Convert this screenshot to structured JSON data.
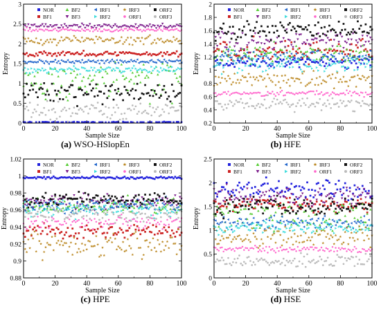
{
  "legend_entries": [
    {
      "name": "NOR",
      "color": "#2222dd",
      "shape": "square"
    },
    {
      "name": "BF1",
      "color": "#cc2222",
      "shape": "square"
    },
    {
      "name": "BF2",
      "color": "#55cc33",
      "shape": "triangle-up"
    },
    {
      "name": "BF3",
      "color": "#7a1a8a",
      "shape": "triangle-down"
    },
    {
      "name": "IRF1",
      "color": "#2266cc",
      "shape": "triangle-left"
    },
    {
      "name": "IRF2",
      "color": "#44dddd",
      "shape": "triangle-right"
    },
    {
      "name": "IRF3",
      "color": "#bb8822",
      "shape": "star"
    },
    {
      "name": "ORF1",
      "color": "#ff66cc",
      "shape": "hexagon"
    },
    {
      "name": "ORF2",
      "color": "#111111",
      "shape": "square"
    },
    {
      "name": "ORF3",
      "color": "#bbbbbb",
      "shape": "circle"
    }
  ],
  "chart_data": [
    {
      "type": "scatter",
      "caption_letter": "(a)",
      "caption_text": "WSO-HSlopEn",
      "xlabel": "Sample Size",
      "ylabel": "Entropy",
      "xlim": [
        0,
        100
      ],
      "ylim": [
        0,
        3
      ],
      "xticks": [
        "0",
        "20",
        "40",
        "60",
        "80",
        "100"
      ],
      "yticks": [
        "0",
        "0.5",
        "1",
        "1.5",
        "2",
        "2.5",
        "3"
      ],
      "ytick_values": [
        0,
        0.5,
        1,
        1.5,
        2,
        2.5,
        3
      ],
      "series": [
        {
          "name": "NOR",
          "mean": 0.02,
          "spread": 0.01
        },
        {
          "name": "BF1",
          "mean": 1.75,
          "spread": 0.05
        },
        {
          "name": "BF2",
          "mean": 1.05,
          "spread": 0.35
        },
        {
          "name": "BF3",
          "mean": 2.45,
          "spread": 0.05
        },
        {
          "name": "IRF1",
          "mean": 1.55,
          "spread": 0.04
        },
        {
          "name": "IRF2",
          "mean": 1.35,
          "spread": 0.06
        },
        {
          "name": "IRF3",
          "mean": 2.1,
          "spread": 0.08
        },
        {
          "name": "ORF1",
          "mean": 2.35,
          "spread": 0.04
        },
        {
          "name": "ORF2",
          "mean": 0.75,
          "spread": 0.2
        },
        {
          "name": "ORF3",
          "mean": 0.3,
          "spread": 0.15
        }
      ]
    },
    {
      "type": "scatter",
      "caption_letter": "(b)",
      "caption_text": "HFE",
      "xlabel": "Sample Size",
      "ylabel": "Entropy",
      "xlim": [
        0,
        100
      ],
      "ylim": [
        0.2,
        2
      ],
      "xticks": [
        "0",
        "20",
        "40",
        "60",
        "80",
        "100"
      ],
      "yticks": [
        "0.2",
        "0.4",
        "0.6",
        "0.8",
        "1",
        "1.2",
        "1.4",
        "1.6",
        "1.8",
        "2"
      ],
      "ytick_values": [
        0.2,
        0.4,
        0.6,
        0.8,
        1,
        1.2,
        1.4,
        1.6,
        1.8,
        2
      ],
      "series": [
        {
          "name": "NOR",
          "mean": 1.12,
          "spread": 0.06
        },
        {
          "name": "BF1",
          "mean": 1.3,
          "spread": 0.12
        },
        {
          "name": "BF2",
          "mean": 1.25,
          "spread": 0.12
        },
        {
          "name": "BF3",
          "mean": 1.45,
          "spread": 0.12
        },
        {
          "name": "IRF1",
          "mean": 1.2,
          "spread": 0.08
        },
        {
          "name": "IRF2",
          "mean": 1.1,
          "spread": 0.1
        },
        {
          "name": "IRF3",
          "mean": 0.85,
          "spread": 0.1
        },
        {
          "name": "ORF1",
          "mean": 0.65,
          "spread": 0.03
        },
        {
          "name": "ORF2",
          "mean": 1.6,
          "spread": 0.1
        },
        {
          "name": "ORF3",
          "mean": 0.48,
          "spread": 0.08
        }
      ]
    },
    {
      "type": "scatter",
      "caption_letter": "(c)",
      "caption_text": "HPE",
      "xlabel": "Sample Size",
      "ylabel": "Entropy",
      "xlim": [
        0,
        100
      ],
      "ylim": [
        0.88,
        1.02
      ],
      "xticks": [
        "0",
        "20",
        "40",
        "60",
        "80",
        "100"
      ],
      "yticks": [
        "0.88",
        "0.9",
        "0.92",
        "0.94",
        "0.96",
        "0.98",
        "1",
        "1.02"
      ],
      "ytick_values": [
        0.88,
        0.9,
        0.92,
        0.94,
        0.96,
        0.98,
        1,
        1.02
      ],
      "series": [
        {
          "name": "NOR",
          "mean": 0.998,
          "spread": 0.001
        },
        {
          "name": "BF1",
          "mean": 0.935,
          "spread": 0.006
        },
        {
          "name": "BF2",
          "mean": 0.965,
          "spread": 0.007
        },
        {
          "name": "BF3",
          "mean": 0.97,
          "spread": 0.006
        },
        {
          "name": "IRF1",
          "mean": 0.965,
          "spread": 0.006
        },
        {
          "name": "IRF2",
          "mean": 0.96,
          "spread": 0.008
        },
        {
          "name": "IRF3",
          "mean": 0.92,
          "spread": 0.012
        },
        {
          "name": "ORF1",
          "mean": 0.945,
          "spread": 0.006
        },
        {
          "name": "ORF2",
          "mean": 0.972,
          "spread": 0.006
        },
        {
          "name": "ORF3",
          "mean": 0.955,
          "spread": 0.008
        }
      ]
    },
    {
      "type": "scatter",
      "caption_letter": "(d)",
      "caption_text": "HSE",
      "xlabel": "Sample Size",
      "ylabel": "Entropy",
      "xlim": [
        0,
        100
      ],
      "ylim": [
        0,
        2.5
      ],
      "xticks": [
        "0",
        "20",
        "40",
        "60",
        "80",
        "100"
      ],
      "yticks": [
        "0",
        "0.5",
        "1",
        "1.5",
        "2",
        "2.5"
      ],
      "ytick_values": [
        0,
        0.5,
        1,
        1.5,
        2,
        2.5
      ],
      "series": [
        {
          "name": "NOR",
          "mean": 1.85,
          "spread": 0.15
        },
        {
          "name": "BF1",
          "mean": 1.55,
          "spread": 0.12
        },
        {
          "name": "BF2",
          "mean": 1.3,
          "spread": 0.25
        },
        {
          "name": "BF3",
          "mean": 1.7,
          "spread": 0.15
        },
        {
          "name": "IRF1",
          "mean": 1.15,
          "spread": 0.1
        },
        {
          "name": "IRF2",
          "mean": 1.05,
          "spread": 0.12
        },
        {
          "name": "IRF3",
          "mean": 0.85,
          "spread": 0.15
        },
        {
          "name": "ORF1",
          "mean": 0.6,
          "spread": 0.05
        },
        {
          "name": "ORF2",
          "mean": 1.5,
          "spread": 0.15
        },
        {
          "name": "ORF3",
          "mean": 0.35,
          "spread": 0.1
        }
      ]
    }
  ]
}
